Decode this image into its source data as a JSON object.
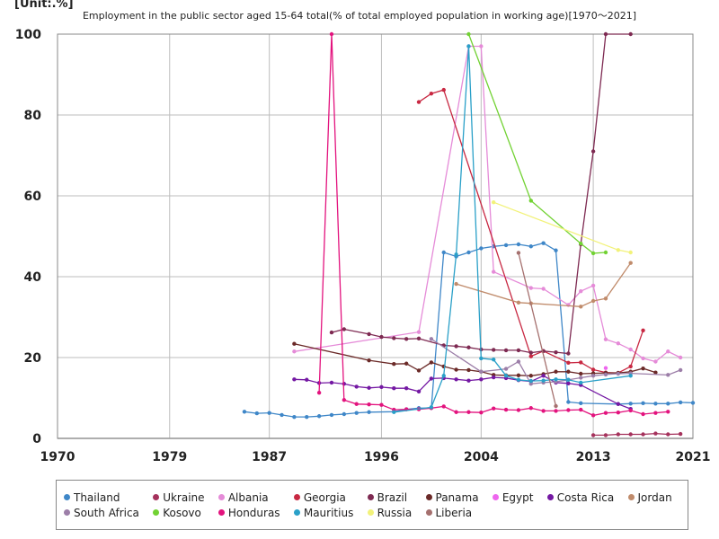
{
  "unit_label": "[Unit:.%]",
  "chart_data": {
    "type": "line",
    "title": "Employment in the public sector aged 15-64 total(% of total employed population in working age)[1970～2021]",
    "xlabel": "",
    "ylabel": "",
    "xlim": [
      1970,
      2021
    ],
    "ylim": [
      0,
      100
    ],
    "x_ticks": [
      "1970",
      "1979",
      "1987",
      "1996",
      "2004",
      "2013",
      "2021"
    ],
    "y_ticks": [
      "0",
      "20",
      "40",
      "60",
      "80",
      "100"
    ],
    "grid": true,
    "legend_position": "bottom",
    "series": [
      {
        "name": "Thailand",
        "color": "#3f87c8",
        "points": [
          [
            1985,
            6.6
          ],
          [
            1986,
            6.2
          ],
          [
            1987,
            6.3
          ],
          [
            1988,
            5.8
          ],
          [
            1989,
            5.3
          ],
          [
            1990,
            5.3
          ],
          [
            1991,
            5.5
          ],
          [
            1992,
            5.8
          ],
          [
            1993,
            6.0
          ],
          [
            1994,
            6.3
          ],
          [
            1995,
            6.5
          ],
          [
            1997,
            6.6
          ],
          [
            1998,
            7.2
          ],
          [
            1999,
            7.5
          ],
          [
            2000,
            7.5
          ],
          [
            2001,
            46
          ],
          [
            2002,
            45
          ],
          [
            2003,
            46
          ],
          [
            2004,
            47
          ],
          [
            2005,
            47.5
          ],
          [
            2006,
            47.8
          ],
          [
            2007,
            48
          ],
          [
            2008,
            47.5
          ],
          [
            2009,
            48.3
          ],
          [
            2010,
            46.5
          ],
          [
            2011,
            9.0
          ],
          [
            2012,
            8.7
          ],
          [
            2015,
            8.5
          ],
          [
            2016,
            8.6
          ],
          [
            2017,
            8.7
          ],
          [
            2018,
            8.6
          ],
          [
            2019,
            8.6
          ],
          [
            2020,
            8.9
          ],
          [
            2021,
            8.8
          ]
        ]
      },
      {
        "name": "Ukraine",
        "color": "#a5325c",
        "points": [
          [
            2013,
            0.8
          ],
          [
            2014,
            0.8
          ],
          [
            2015,
            1.0
          ],
          [
            2016,
            1.0
          ],
          [
            2017,
            1.0
          ],
          [
            2018,
            1.2
          ],
          [
            2019,
            1.0
          ],
          [
            2020,
            1.1
          ]
        ]
      },
      {
        "name": "Albania",
        "color": "#e58bd8",
        "points": [
          [
            1989,
            21.5
          ],
          [
            1999,
            26.3
          ],
          [
            2003,
            97
          ],
          [
            2004,
            97
          ],
          [
            2005,
            41.2
          ],
          [
            2008,
            37.2
          ],
          [
            2009,
            37.0
          ],
          [
            2011,
            33.0
          ],
          [
            2012,
            36.4
          ],
          [
            2013,
            37.8
          ],
          [
            2014,
            24.5
          ],
          [
            2015,
            23.5
          ],
          [
            2016,
            22.0
          ],
          [
            2017,
            19.8
          ],
          [
            2018,
            19.0
          ],
          [
            2019,
            21.5
          ],
          [
            2020,
            20.0
          ]
        ]
      },
      {
        "name": "Georgia",
        "color": "#c82842",
        "points": [
          [
            1999,
            83.2
          ],
          [
            2000,
            85.3
          ],
          [
            2001,
            86.2
          ],
          [
            2008,
            20.3
          ],
          [
            2009,
            21.6
          ],
          [
            2011,
            18.7
          ],
          [
            2012,
            18.8
          ],
          [
            2013,
            17.0
          ],
          [
            2014,
            16.3
          ],
          [
            2015,
            16.2
          ],
          [
            2016,
            17.8
          ],
          [
            2017,
            26.7
          ]
        ]
      },
      {
        "name": "Brazil",
        "color": "#7e2a52",
        "points": [
          [
            1992,
            26.2
          ],
          [
            1993,
            27.0
          ],
          [
            1995,
            25.8
          ],
          [
            1996,
            25.1
          ],
          [
            1997,
            24.8
          ],
          [
            1998,
            24.6
          ],
          [
            1999,
            24.7
          ],
          [
            2001,
            23.0
          ],
          [
            2002,
            22.8
          ],
          [
            2003,
            22.5
          ],
          [
            2004,
            22.0
          ],
          [
            2005,
            21.9
          ],
          [
            2006,
            21.8
          ],
          [
            2007,
            21.8
          ],
          [
            2008,
            21.2
          ],
          [
            2009,
            21.6
          ],
          [
            2010,
            21.3
          ],
          [
            2011,
            21.0
          ],
          [
            2012,
            48.0
          ],
          [
            2013,
            71.0
          ],
          [
            2014,
            100
          ],
          [
            2016,
            100
          ]
        ]
      },
      {
        "name": "Panama",
        "color": "#6b2a28",
        "points": [
          [
            1989,
            23.4
          ],
          [
            1995,
            19.3
          ],
          [
            1997,
            18.4
          ],
          [
            1998,
            18.5
          ],
          [
            1999,
            16.8
          ],
          [
            2000,
            18.8
          ],
          [
            2001,
            17.8
          ],
          [
            2002,
            17.0
          ],
          [
            2003,
            16.9
          ],
          [
            2004,
            16.5
          ],
          [
            2005,
            15.7
          ],
          [
            2006,
            15.6
          ],
          [
            2007,
            15.6
          ],
          [
            2008,
            15.5
          ],
          [
            2009,
            15.9
          ],
          [
            2010,
            16.5
          ],
          [
            2011,
            16.5
          ],
          [
            2012,
            16.0
          ],
          [
            2013,
            16.1
          ],
          [
            2014,
            16.2
          ],
          [
            2015,
            16.2
          ],
          [
            2016,
            16.5
          ],
          [
            2017,
            17.3
          ],
          [
            2018,
            16.3
          ]
        ]
      },
      {
        "name": "Egypt",
        "color": "#ee66ee",
        "points": [
          [
            2014,
            17.4
          ]
        ]
      },
      {
        "name": "Costa Rica",
        "color": "#7418a3",
        "points": [
          [
            1989,
            14.6
          ],
          [
            1990,
            14.5
          ],
          [
            1991,
            13.7
          ],
          [
            1992,
            13.8
          ],
          [
            1993,
            13.5
          ],
          [
            1994,
            12.8
          ],
          [
            1995,
            12.5
          ],
          [
            1996,
            12.7
          ],
          [
            1997,
            12.4
          ],
          [
            1998,
            12.4
          ],
          [
            1999,
            11.6
          ],
          [
            2000,
            14.8
          ],
          [
            2001,
            14.9
          ],
          [
            2002,
            14.6
          ],
          [
            2003,
            14.3
          ],
          [
            2004,
            14.6
          ],
          [
            2005,
            15.1
          ],
          [
            2006,
            14.9
          ],
          [
            2007,
            14.4
          ],
          [
            2008,
            14.1
          ],
          [
            2009,
            15.5
          ],
          [
            2010,
            13.8
          ],
          [
            2011,
            13.6
          ],
          [
            2012,
            13.2
          ],
          [
            2015,
            8.5
          ],
          [
            2016,
            7.3
          ]
        ]
      },
      {
        "name": "Jordan",
        "color": "#c08b6b",
        "points": [
          [
            2002,
            38.2
          ],
          [
            2007,
            33.6
          ],
          [
            2008,
            33.4
          ],
          [
            2012,
            32.6
          ],
          [
            2013,
            34.0
          ],
          [
            2014,
            34.6
          ],
          [
            2016,
            43.4
          ]
        ]
      },
      {
        "name": "South Africa",
        "color": "#9c7ea8",
        "points": [
          [
            2000,
            24.6
          ],
          [
            2004,
            16.5
          ],
          [
            2006,
            17.2
          ],
          [
            2007,
            19.0
          ],
          [
            2008,
            13.5
          ],
          [
            2009,
            13.8
          ],
          [
            2010,
            14.0
          ],
          [
            2011,
            14.5
          ],
          [
            2012,
            15.0
          ],
          [
            2013,
            15.5
          ],
          [
            2014,
            15.8
          ],
          [
            2015,
            16.0
          ],
          [
            2016,
            16.1
          ],
          [
            2019,
            15.7
          ],
          [
            2020,
            16.9
          ]
        ]
      },
      {
        "name": "Kosovo",
        "color": "#72d233",
        "points": [
          [
            2003,
            100
          ],
          [
            2008,
            58.8
          ],
          [
            2012,
            48.2
          ],
          [
            2013,
            45.8
          ],
          [
            2014,
            46.0
          ]
        ]
      },
      {
        "name": "Honduras",
        "color": "#e3137e",
        "points": [
          [
            1991,
            11.3
          ],
          [
            1992,
            100
          ],
          [
            1993,
            9.5
          ],
          [
            1994,
            8.5
          ],
          [
            1995,
            8.4
          ],
          [
            1996,
            8.3
          ],
          [
            1997,
            7.1
          ],
          [
            1998,
            7.2
          ],
          [
            1999,
            7.2
          ],
          [
            2000,
            7.5
          ],
          [
            2001,
            7.9
          ],
          [
            2002,
            6.5
          ],
          [
            2003,
            6.5
          ],
          [
            2004,
            6.4
          ],
          [
            2005,
            7.4
          ],
          [
            2006,
            7.1
          ],
          [
            2007,
            7.0
          ],
          [
            2008,
            7.5
          ],
          [
            2009,
            6.8
          ],
          [
            2010,
            6.8
          ],
          [
            2011,
            7.0
          ],
          [
            2012,
            7.1
          ],
          [
            2013,
            5.7
          ],
          [
            2014,
            6.3
          ],
          [
            2015,
            6.4
          ],
          [
            2016,
            6.9
          ],
          [
            2017,
            6.0
          ],
          [
            2018,
            6.3
          ],
          [
            2019,
            6.6
          ]
        ]
      },
      {
        "name": "Mauritius",
        "color": "#2aa0c8",
        "points": [
          [
            1997,
            6.5
          ],
          [
            2000,
            7.7
          ],
          [
            2001,
            15.5
          ],
          [
            2002,
            45.5
          ],
          [
            2003,
            97
          ],
          [
            2004,
            19.8
          ],
          [
            2005,
            19.5
          ],
          [
            2006,
            15.5
          ],
          [
            2007,
            14.5
          ],
          [
            2008,
            14.2
          ],
          [
            2009,
            14.3
          ],
          [
            2010,
            14.6
          ],
          [
            2011,
            14.5
          ],
          [
            2012,
            13.8
          ],
          [
            2016,
            15.5
          ]
        ]
      },
      {
        "name": "Russia",
        "color": "#f2f27a",
        "points": [
          [
            2005,
            58.4
          ],
          [
            2015,
            46.6
          ],
          [
            2016,
            46.0
          ]
        ]
      },
      {
        "name": "Liberia",
        "color": "#a5706e",
        "points": [
          [
            2007,
            45.9
          ],
          [
            2010,
            8.0
          ]
        ]
      }
    ]
  }
}
